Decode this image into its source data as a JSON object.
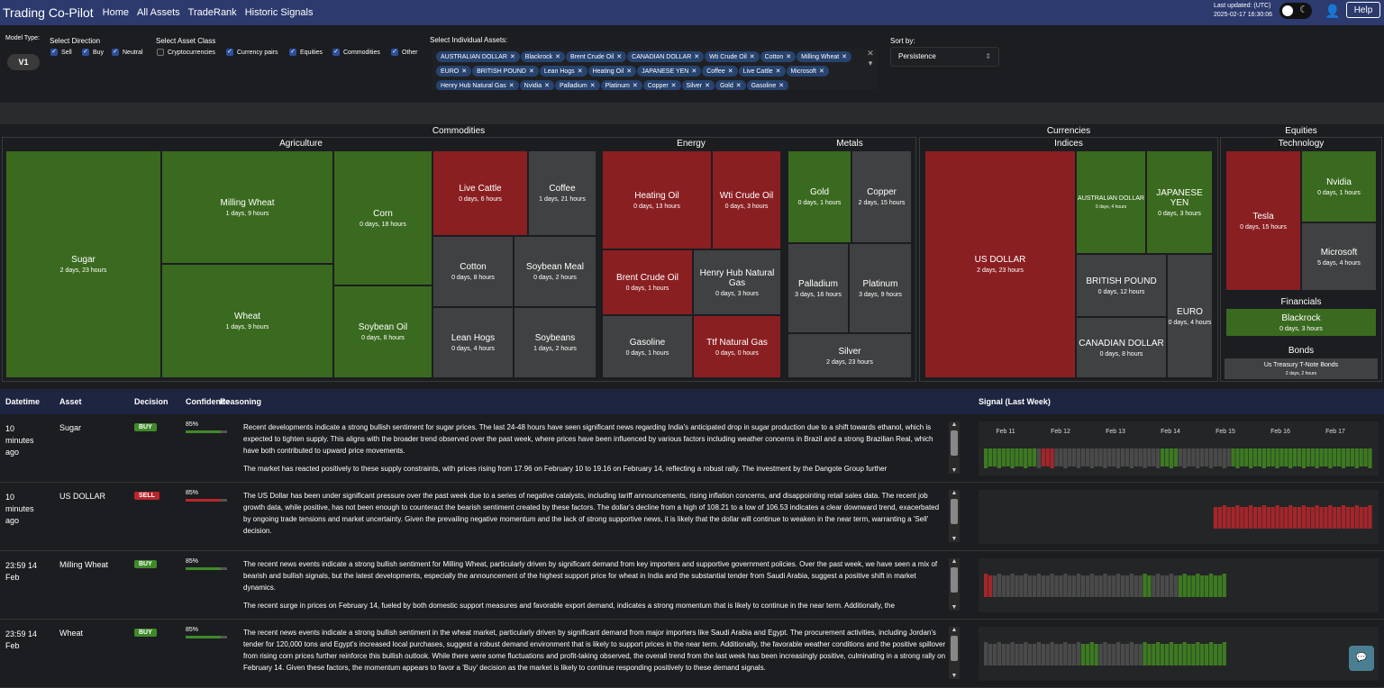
{
  "header": {
    "brand": "Trading Co-Pilot",
    "nav": [
      "Home",
      "All Assets",
      "TradeRank",
      "Historic Signals"
    ],
    "last_updated_label": "Last updated: (UTC)",
    "last_updated_value": "2025-02-17 16:30:06",
    "help_label": "Help"
  },
  "filters": {
    "model_type_label": "Model Type:",
    "model_value": "V1",
    "direction_label": "Select Direction",
    "directions": [
      "Sell",
      "Buy",
      "Neutral"
    ],
    "asset_class_label": "Select Asset Class",
    "asset_classes": [
      {
        "label": "Cryptocurrencies",
        "checked": false
      },
      {
        "label": "Currency pairs",
        "checked": true
      },
      {
        "label": "Equities",
        "checked": true
      },
      {
        "label": "Commodities",
        "checked": true
      },
      {
        "label": "Other",
        "checked": true
      }
    ],
    "individual_label": "Select Individual Assets:",
    "assets": [
      "AUSTRALIAN DOLLAR",
      "Blackrock",
      "Brent Crude Oil",
      "CANADIAN DOLLAR",
      "Wti Crude Oil",
      "Cotton",
      "Milling Wheat",
      "EURO",
      "BRITISH POUND",
      "Lean Hogs",
      "Heating Oil",
      "JAPANESE YEN",
      "Coffee",
      "Live Cattle",
      "Microsoft",
      "Henry Hub Natural Gas",
      "Nvidia",
      "Palladium",
      "Platinum",
      "Copper",
      "Silver",
      "Gold",
      "Gasoline"
    ],
    "sort_label": "Sort by:",
    "sort_value": "Persistence"
  },
  "treemap": {
    "headers": {
      "commodities": "Commodities",
      "agriculture": "Agriculture",
      "energy": "Energy",
      "metals": "Metals",
      "currencies": "Currencies",
      "indices": "Indices",
      "equities": "Equities",
      "technology": "Technology",
      "financials": "Financials",
      "bonds": "Bonds"
    },
    "tiles": {
      "sugar": {
        "name": "Sugar",
        "sub": "2 days, 23 hours",
        "signal": "buy"
      },
      "milling_wheat": {
        "name": "Milling Wheat",
        "sub": "1 days, 9 hours",
        "signal": "buy"
      },
      "wheat": {
        "name": "Wheat",
        "sub": "1 days, 9 hours",
        "signal": "buy"
      },
      "corn": {
        "name": "Corn",
        "sub": "0 days, 18 hours",
        "signal": "buy"
      },
      "soybean_oil": {
        "name": "Soybean Oil",
        "sub": "0 days, 8 hours",
        "signal": "buy"
      },
      "live_cattle": {
        "name": "Live Cattle",
        "sub": "0 days, 6 hours",
        "signal": "sell"
      },
      "coffee": {
        "name": "Coffee",
        "sub": "1 days, 21 hours",
        "signal": "neutral"
      },
      "cotton": {
        "name": "Cotton",
        "sub": "0 days, 8 hours",
        "signal": "neutral"
      },
      "soybean_meal": {
        "name": "Soybean Meal",
        "sub": "0 days, 2 hours",
        "signal": "neutral"
      },
      "lean_hogs": {
        "name": "Lean Hogs",
        "sub": "0 days, 4 hours",
        "signal": "neutral"
      },
      "soybeans": {
        "name": "Soybeans",
        "sub": "1 days, 2 hours",
        "signal": "neutral"
      },
      "heating_oil": {
        "name": "Heating Oil",
        "sub": "0 days, 13 hours",
        "signal": "sell"
      },
      "wti": {
        "name": "Wti Crude Oil",
        "sub": "0 days, 3 hours",
        "signal": "sell"
      },
      "brent": {
        "name": "Brent Crude Oil",
        "sub": "0 days, 1 hours",
        "signal": "sell"
      },
      "henry_hub": {
        "name": "Henry Hub Natural Gas",
        "sub": "0 days, 3 hours",
        "signal": "neutral"
      },
      "gasoline": {
        "name": "Gasoline",
        "sub": "0 days, 1 hours",
        "signal": "neutral"
      },
      "ttf": {
        "name": "Ttf Natural Gas",
        "sub": "0 days, 0 hours",
        "signal": "sell"
      },
      "gold": {
        "name": "Gold",
        "sub": "0 days, 1 hours",
        "signal": "buy"
      },
      "copper": {
        "name": "Copper",
        "sub": "2 days, 15 hours",
        "signal": "neutral"
      },
      "palladium": {
        "name": "Palladium",
        "sub": "3 days, 16 hours",
        "signal": "neutral"
      },
      "platinum": {
        "name": "Platinum",
        "sub": "3 days, 9 hours",
        "signal": "neutral"
      },
      "silver": {
        "name": "Silver",
        "sub": "2 days, 23 hours",
        "signal": "neutral"
      },
      "usd": {
        "name": "US DOLLAR",
        "sub": "2 days, 23 hours",
        "signal": "sell"
      },
      "aud": {
        "name": "AUSTRALIAN DOLLAR",
        "sub": "0 days, 4 hours",
        "signal": "buy"
      },
      "jpy": {
        "name": "JAPANESE YEN",
        "sub": "0 days, 3 hours",
        "signal": "buy"
      },
      "gbp": {
        "name": "BRITISH POUND",
        "sub": "0 days, 12 hours",
        "signal": "neutral"
      },
      "cad": {
        "name": "CANADIAN DOLLAR",
        "sub": "0 days, 8 hours",
        "signal": "neutral"
      },
      "eur": {
        "name": "EURO",
        "sub": "0 days, 4 hours",
        "signal": "neutral"
      },
      "tesla": {
        "name": "Tesla",
        "sub": "0 days, 15 hours",
        "signal": "sell"
      },
      "nvidia": {
        "name": "Nvidia",
        "sub": "0 days, 1 hours",
        "signal": "buy"
      },
      "microsoft": {
        "name": "Microsoft",
        "sub": "5 days, 4 hours",
        "signal": "neutral"
      },
      "blackrock": {
        "name": "Blackrock",
        "sub": "0 days, 3 hours",
        "signal": "buy"
      },
      "ust": {
        "name": "Us Treasury T-Note Bonds",
        "sub": "2 days, 2 hours",
        "signal": "neutral"
      }
    }
  },
  "table": {
    "headers": [
      "Datetime",
      "Asset",
      "Decision",
      "Confidence",
      "Reasoning",
      "Signal (Last Week)"
    ],
    "signal_days": [
      "Feb 11",
      "Feb 12",
      "Feb 13",
      "Feb 14",
      "Feb 15",
      "Feb 16",
      "Feb 17"
    ],
    "rows": [
      {
        "datetime": "10 minutes ago",
        "asset": "Sugar",
        "decision": "BUY",
        "confidence": "85%",
        "confidence_value": 0.85,
        "reasoning": [
          "Recent developments indicate a strong bullish sentiment for sugar prices. The last 24-48 hours have seen significant news regarding India's anticipated drop in sugar production due to a shift towards ethanol, which is expected to tighten supply. This aligns with the broader trend observed over the past week, where prices have been influenced by various factors including weather concerns in Brazil and a strong Brazilian Real, which have both contributed to upward price movements.",
          "The market has reacted positively to these supply constraints, with prices rising from 17.96 on February 10 to 19.16 on February 14, reflecting a robust rally. The investment by the Dangote Group further"
        ]
      },
      {
        "datetime": "10 minutes ago",
        "asset": "US DOLLAR",
        "decision": "SELL",
        "confidence": "85%",
        "confidence_value": 0.85,
        "reasoning": [
          "The US Dollar has been under significant pressure over the past week due to a series of negative catalysts, including tariff announcements, rising inflation concerns, and disappointing retail sales data. The recent job growth data, while positive, has not been enough to counteract the bearish sentiment created by these factors. The dollar's decline from a high of 108.21 to a low of 106.53 indicates a clear downward trend, exacerbated by ongoing trade tensions and market uncertainty. Given the prevailing negative momentum and the lack of strong supportive news, it is likely that the dollar will continue to weaken in the near term, warranting a 'Sell' decision."
        ]
      },
      {
        "datetime": "23:59 14 Feb",
        "asset": "Milling Wheat",
        "decision": "BUY",
        "confidence": "85%",
        "confidence_value": 0.85,
        "reasoning": [
          "The recent news events indicate a strong bullish sentiment for Milling Wheat, particularly driven by significant demand from key importers and supportive government policies. Over the past week, we have seen a mix of bearish and bullish signals, but the latest developments, especially the announcement of the highest support price for wheat in India and the substantial tender from Saudi Arabia, suggest a positive shift in market dynamics.",
          "The recent surge in prices on February 14, fueled by both domestic support measures and favorable export demand, indicates a strong momentum that is likely to continue in the near term. Additionally, the"
        ]
      },
      {
        "datetime": "23:59 14 Feb",
        "asset": "Wheat",
        "decision": "BUY",
        "confidence": "85%",
        "confidence_value": 0.85,
        "reasoning": [
          "The recent news events indicate a strong bullish sentiment in the wheat market, particularly driven by significant demand from major importers like Saudi Arabia and Egypt. The procurement activities, including Jordan's tender for 120,000 tons and Egypt's increased local purchases, suggest a robust demand environment that is likely to support prices in the near term. Additionally, the favorable weather conditions and the positive spillover from rising corn prices further reinforce this bullish outlook. While there were some fluctuations and profit-taking observed, the overall trend from the last week has been increasingly positive, culminating in a strong rally on February 14. Given these factors, the momentum appears to favor a 'Buy' decision as the market is likely to continue responding positively to these demand signals."
        ]
      }
    ]
  },
  "colors": {
    "buy": "#3a6a1f",
    "sell": "#8a1f22",
    "neutral": "#404142",
    "bar_buy": "#3d7a22",
    "bar_sell": "#a3262a",
    "bar_neutral": "#4a4a4a"
  },
  "icons": [
    "user-icon",
    "moon-icon",
    "chat-icon",
    "close-icon",
    "chevron-icon"
  ]
}
